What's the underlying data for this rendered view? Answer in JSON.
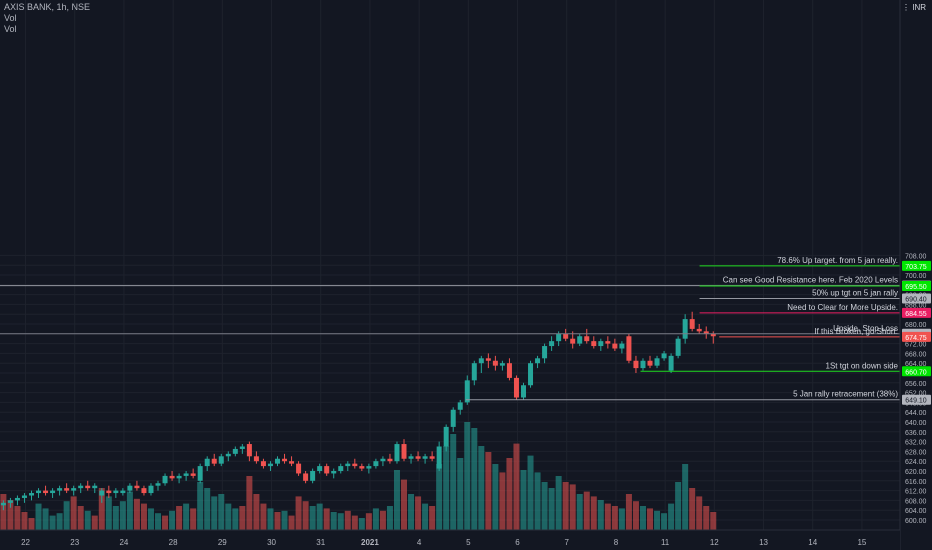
{
  "legend": {
    "symbol": "AXIS BANK, 1h, NSE",
    "study1": "Vol",
    "study2": "Vol"
  },
  "currency": "INR",
  "chart_data": {
    "type": "candlestick",
    "y_ticks": [
      600,
      604,
      608,
      612,
      616,
      620,
      624,
      628,
      632,
      636,
      640,
      644,
      648,
      652,
      656,
      660,
      664,
      668,
      672,
      676,
      680,
      684,
      688,
      692,
      696,
      700,
      704,
      708
    ],
    "x_ticks": [
      {
        "label": "22",
        "x": 0.6
      },
      {
        "label": "23",
        "x": 1.6
      },
      {
        "label": "24",
        "x": 2.6
      },
      {
        "label": "28",
        "x": 3.6
      },
      {
        "label": "29",
        "x": 4.6
      },
      {
        "label": "30",
        "x": 5.6
      },
      {
        "label": "31",
        "x": 6.6
      },
      {
        "label": "2021",
        "x": 7.6
      },
      {
        "label": "4",
        "x": 8.6
      },
      {
        "label": "5",
        "x": 9.6
      },
      {
        "label": "6",
        "x": 10.6
      },
      {
        "label": "7",
        "x": 11.6
      },
      {
        "label": "8",
        "x": 12.6
      },
      {
        "label": "11",
        "x": 13.6
      },
      {
        "label": "12",
        "x": 14.6
      },
      {
        "label": "13",
        "x": 15.6
      },
      {
        "label": "14",
        "x": 16.6
      },
      {
        "label": "15",
        "x": 17.6
      }
    ],
    "levels": [
      {
        "price": 703.75,
        "label": "703.75",
        "color": "#00e600",
        "text": "78.6% Up target. from 5 jan really.",
        "line": "#1fdb1f",
        "x_start": 14.3
      },
      {
        "price": 695.65,
        "label": "695.65",
        "color": "#b2b5be",
        "text": "Can see Good Resistance here. Feb 2020 Levels",
        "line": "#9598a1",
        "x_start": 0
      },
      {
        "price": 695.5,
        "label": "695.50",
        "color": "#00e600",
        "text": "",
        "line": "#1fdb1f",
        "x_start": 14.3
      },
      {
        "price": 690.4,
        "label": "690.40",
        "color": "#b2b5be",
        "text": "50% up tgt on  5 jan rally",
        "line": "#9598a1",
        "x_start": 14.3
      },
      {
        "price": 684.55,
        "label": "684.55",
        "color": "#e91e63",
        "text": "Need to Clear for More Upside.",
        "line": "#e91e63",
        "x_start": 14.3
      },
      {
        "price": 676.0,
        "label": "676.00",
        "color": "#b2b5be",
        "text": "Upside, Stop Loss",
        "line": "#787b86",
        "x_start": 0
      },
      {
        "price": 674.75,
        "label": "674.75",
        "color": "#f05350",
        "text": "If this Broken, go Short.",
        "line": "#f05350",
        "x_start": 14.7
      },
      {
        "price": 660.7,
        "label": "660.70",
        "color": "#00e600",
        "text": "1St tgt on down side",
        "line": "#1fdb1f",
        "x_start": 13.1
      },
      {
        "price": 649.1,
        "label": "649.10",
        "color": "#b2b5be",
        "text": "5 Jan rally retracement (38%)",
        "line": "#9598a1",
        "x_start": 9.55
      }
    ],
    "candles": [
      [
        606,
        608,
        604,
        607
      ],
      [
        607,
        609,
        605,
        608
      ],
      [
        608,
        610,
        606,
        609
      ],
      [
        609,
        611,
        607,
        610
      ],
      [
        610,
        612,
        608,
        611
      ],
      [
        611,
        613,
        609,
        612
      ],
      [
        612,
        614,
        610,
        611
      ],
      [
        611,
        613,
        609,
        612
      ],
      [
        612,
        614,
        610,
        613
      ],
      [
        613,
        615,
        611,
        612
      ],
      [
        612,
        614,
        610,
        613
      ],
      [
        613,
        615,
        611,
        614
      ],
      [
        614,
        616,
        612,
        613
      ],
      [
        613,
        615,
        611,
        614
      ],
      [
        610,
        613,
        607,
        612
      ],
      [
        612,
        614,
        609,
        611
      ],
      [
        611,
        613,
        609,
        612
      ],
      [
        611,
        613,
        610,
        612
      ],
      [
        612,
        615,
        611,
        614
      ],
      [
        614,
        616,
        612,
        613
      ],
      [
        613,
        614,
        610,
        611
      ],
      [
        611,
        615,
        610,
        614
      ],
      [
        614,
        616,
        612,
        615
      ],
      [
        615,
        619,
        614,
        618
      ],
      [
        618,
        620,
        616,
        617
      ],
      [
        617,
        619,
        615,
        618
      ],
      [
        618,
        620,
        616,
        619
      ],
      [
        619,
        621,
        617,
        618
      ],
      [
        616,
        623,
        615,
        622
      ],
      [
        622,
        626,
        620,
        625
      ],
      [
        625,
        627,
        622,
        623
      ],
      [
        623,
        627,
        622,
        626
      ],
      [
        626,
        628,
        624,
        627
      ],
      [
        627,
        630,
        626,
        629
      ],
      [
        629,
        631,
        627,
        630
      ],
      [
        631,
        632,
        624,
        626
      ],
      [
        626,
        628,
        623,
        624
      ],
      [
        624,
        625,
        621,
        622
      ],
      [
        622,
        624,
        620,
        623
      ],
      [
        623,
        626,
        622,
        625
      ],
      [
        625,
        627,
        623,
        624
      ],
      [
        624,
        626,
        622,
        623
      ],
      [
        623,
        624,
        618,
        619
      ],
      [
        619,
        620,
        615,
        616
      ],
      [
        616,
        621,
        615,
        620
      ],
      [
        620,
        623,
        619,
        622
      ],
      [
        622,
        623,
        618,
        619
      ],
      [
        619,
        621,
        617,
        620
      ],
      [
        620,
        623,
        619,
        622
      ],
      [
        622,
        624,
        620,
        623
      ],
      [
        623,
        625,
        621,
        622
      ],
      [
        622,
        623,
        620,
        621
      ],
      [
        621,
        623,
        619,
        622
      ],
      [
        622,
        625,
        621,
        624
      ],
      [
        624,
        626,
        622,
        625
      ],
      [
        625,
        627,
        623,
        624
      ],
      [
        624,
        632,
        623,
        631
      ],
      [
        631,
        633,
        624,
        625
      ],
      [
        625,
        627,
        623,
        626
      ],
      [
        626,
        628,
        624,
        625
      ],
      [
        625,
        627,
        623,
        626
      ],
      [
        626,
        628,
        624,
        625
      ],
      [
        621,
        632,
        620,
        630
      ],
      [
        630,
        639,
        628,
        638
      ],
      [
        638,
        646,
        636,
        645
      ],
      [
        645,
        649,
        643,
        648
      ],
      [
        648,
        659,
        647,
        657
      ],
      [
        657,
        665,
        655,
        664
      ],
      [
        664,
        667,
        660,
        666
      ],
      [
        666,
        668,
        662,
        665
      ],
      [
        665,
        667,
        661,
        663
      ],
      [
        663,
        665,
        661,
        664
      ],
      [
        664,
        666,
        657,
        658
      ],
      [
        658,
        659,
        649,
        650
      ],
      [
        650,
        656,
        649,
        655
      ],
      [
        655,
        665,
        654,
        664
      ],
      [
        664,
        667,
        662,
        666
      ],
      [
        666,
        672,
        664,
        671
      ],
      [
        671,
        675,
        669,
        673
      ],
      [
        673,
        677,
        671,
        676
      ],
      [
        676,
        678,
        673,
        674
      ],
      [
        674,
        677,
        670,
        672
      ],
      [
        672,
        676,
        671,
        675
      ],
      [
        675,
        678,
        672,
        673
      ],
      [
        673,
        675,
        670,
        671
      ],
      [
        671,
        674,
        669,
        673
      ],
      [
        673,
        675,
        670,
        672
      ],
      [
        672,
        674,
        669,
        670
      ],
      [
        670,
        673,
        668,
        672
      ],
      [
        675,
        676,
        664,
        665
      ],
      [
        665,
        667,
        660,
        662
      ],
      [
        662,
        666,
        661,
        665
      ],
      [
        665,
        667,
        662,
        663
      ],
      [
        663,
        667,
        662,
        666
      ],
      [
        666,
        669,
        665,
        668
      ],
      [
        661,
        668,
        660,
        667
      ],
      [
        667,
        675,
        666,
        674
      ],
      [
        674,
        684,
        672,
        682
      ],
      [
        682,
        685,
        677,
        678
      ],
      [
        678,
        680,
        676,
        677
      ],
      [
        677,
        679,
        674,
        676
      ],
      [
        676,
        677,
        672,
        675
      ]
    ],
    "volume": [
      [
        0.3,
        1
      ],
      [
        0.25,
        1
      ],
      [
        0.2,
        1
      ],
      [
        0.15,
        1
      ],
      [
        0.1,
        1
      ],
      [
        0.22,
        0
      ],
      [
        0.18,
        0
      ],
      [
        0.12,
        0
      ],
      [
        0.14,
        0
      ],
      [
        0.24,
        0
      ],
      [
        0.28,
        1
      ],
      [
        0.2,
        1
      ],
      [
        0.16,
        0
      ],
      [
        0.12,
        1
      ],
      [
        0.35,
        1
      ],
      [
        0.28,
        0
      ],
      [
        0.2,
        0
      ],
      [
        0.24,
        0
      ],
      [
        0.32,
        0
      ],
      [
        0.26,
        1
      ],
      [
        0.22,
        1
      ],
      [
        0.18,
        0
      ],
      [
        0.14,
        0
      ],
      [
        0.12,
        1
      ],
      [
        0.16,
        0
      ],
      [
        0.2,
        1
      ],
      [
        0.22,
        0
      ],
      [
        0.18,
        1
      ],
      [
        0.4,
        0
      ],
      [
        0.35,
        0
      ],
      [
        0.28,
        0
      ],
      [
        0.3,
        0
      ],
      [
        0.22,
        0
      ],
      [
        0.18,
        0
      ],
      [
        0.2,
        1
      ],
      [
        0.45,
        1
      ],
      [
        0.3,
        1
      ],
      [
        0.22,
        1
      ],
      [
        0.18,
        0
      ],
      [
        0.15,
        1
      ],
      [
        0.16,
        0
      ],
      [
        0.12,
        1
      ],
      [
        0.28,
        1
      ],
      [
        0.24,
        1
      ],
      [
        0.2,
        0
      ],
      [
        0.22,
        0
      ],
      [
        0.18,
        1
      ],
      [
        0.15,
        0
      ],
      [
        0.14,
        0
      ],
      [
        0.16,
        1
      ],
      [
        0.12,
        1
      ],
      [
        0.1,
        0
      ],
      [
        0.14,
        1
      ],
      [
        0.18,
        0
      ],
      [
        0.16,
        1
      ],
      [
        0.2,
        0
      ],
      [
        0.5,
        0
      ],
      [
        0.42,
        1
      ],
      [
        0.3,
        0
      ],
      [
        0.28,
        1
      ],
      [
        0.22,
        0
      ],
      [
        0.2,
        1
      ],
      [
        0.55,
        0
      ],
      [
        0.7,
        0
      ],
      [
        0.8,
        0
      ],
      [
        0.6,
        0
      ],
      [
        0.9,
        0
      ],
      [
        0.85,
        0
      ],
      [
        0.7,
        0
      ],
      [
        0.65,
        1
      ],
      [
        0.55,
        0
      ],
      [
        0.48,
        1
      ],
      [
        0.6,
        1
      ],
      [
        0.72,
        1
      ],
      [
        0.5,
        0
      ],
      [
        0.62,
        0
      ],
      [
        0.48,
        0
      ],
      [
        0.4,
        0
      ],
      [
        0.35,
        0
      ],
      [
        0.45,
        0
      ],
      [
        0.4,
        1
      ],
      [
        0.38,
        1
      ],
      [
        0.3,
        0
      ],
      [
        0.32,
        1
      ],
      [
        0.28,
        1
      ],
      [
        0.25,
        0
      ],
      [
        0.22,
        1
      ],
      [
        0.2,
        1
      ],
      [
        0.18,
        0
      ],
      [
        0.3,
        1
      ],
      [
        0.24,
        1
      ],
      [
        0.2,
        0
      ],
      [
        0.18,
        1
      ],
      [
        0.16,
        0
      ],
      [
        0.14,
        0
      ],
      [
        0.22,
        0
      ],
      [
        0.4,
        0
      ],
      [
        0.55,
        0
      ],
      [
        0.35,
        1
      ],
      [
        0.28,
        1
      ],
      [
        0.2,
        1
      ],
      [
        0.15,
        1
      ]
    ]
  }
}
